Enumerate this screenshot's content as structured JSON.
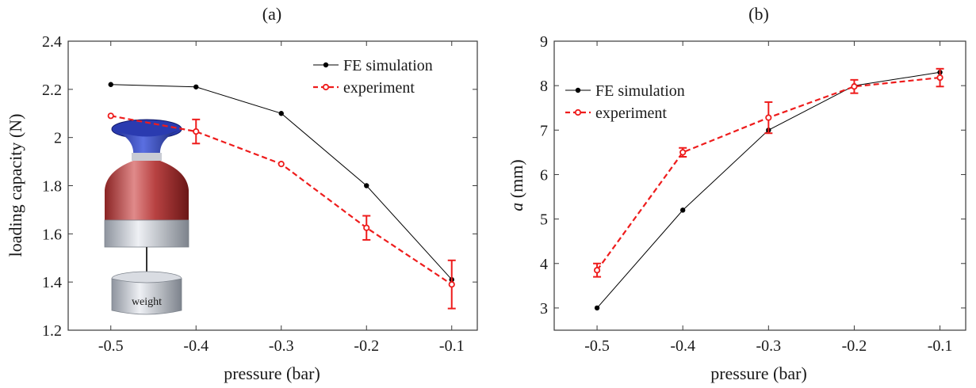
{
  "chart_data": [
    {
      "panel_label": "(a)",
      "type": "line",
      "xlabel": "pressure (bar)",
      "ylabel": "loading capacity (N)",
      "xlim": [
        -0.55,
        -0.07
      ],
      "ylim": [
        1.2,
        2.4
      ],
      "x_ticks": [
        -0.5,
        -0.4,
        -0.3,
        -0.2,
        -0.1
      ],
      "x_tick_labels": [
        "-0.5",
        "-0.4",
        "-0.3",
        "-0.2",
        "-0.1"
      ],
      "y_ticks": [
        1.2,
        1.4,
        1.6,
        1.8,
        2.0,
        2.2,
        2.4
      ],
      "y_tick_labels": [
        "1.2",
        "1.4",
        "1.6",
        "1.8",
        "2",
        "2.2",
        "2.4"
      ],
      "legend_position": "top-right",
      "grid": false,
      "series": [
        {
          "name": "FE simulation",
          "color": "#000000",
          "style": "solid",
          "marker": "filled-circle",
          "x": [
            -0.5,
            -0.4,
            -0.3,
            -0.2,
            -0.1
          ],
          "y": [
            2.22,
            2.21,
            2.1,
            1.8,
            1.41
          ]
        },
        {
          "name": "experiment",
          "color": "#ee1c1c",
          "style": "dashed",
          "marker": "open-circle",
          "x": [
            -0.5,
            -0.4,
            -0.3,
            -0.2,
            -0.1
          ],
          "y": [
            2.09,
            2.025,
            1.89,
            1.625,
            1.39
          ],
          "error": [
            0,
            0.05,
            0,
            0.05,
            0.1
          ]
        }
      ],
      "inset": {
        "label": "weight"
      }
    },
    {
      "panel_label": "(b)",
      "type": "line",
      "xlabel": "pressure (bar)",
      "ylabel_italic": "a",
      "ylabel_rest": " (mm)",
      "xlim": [
        -0.55,
        -0.07
      ],
      "ylim": [
        2.5,
        9
      ],
      "x_ticks": [
        -0.5,
        -0.4,
        -0.3,
        -0.2,
        -0.1
      ],
      "x_tick_labels": [
        "-0.5",
        "-0.4",
        "-0.3",
        "-0.2",
        "-0.1"
      ],
      "y_ticks": [
        3,
        4,
        5,
        6,
        7,
        8,
        9
      ],
      "y_tick_labels": [
        "3",
        "4",
        "5",
        "6",
        "7",
        "8",
        "9"
      ],
      "legend_position": "top-left",
      "grid": false,
      "series": [
        {
          "name": "FE simulation",
          "color": "#000000",
          "style": "solid",
          "marker": "filled-circle",
          "x": [
            -0.5,
            -0.4,
            -0.3,
            -0.2,
            -0.1
          ],
          "y": [
            3.0,
            5.2,
            7.0,
            8.0,
            8.3
          ]
        },
        {
          "name": "experiment",
          "color": "#ee1c1c",
          "style": "dashed",
          "marker": "open-circle",
          "x": [
            -0.5,
            -0.4,
            -0.3,
            -0.2,
            -0.1
          ],
          "y": [
            3.85,
            6.5,
            7.28,
            7.98,
            8.18
          ],
          "error": [
            0.15,
            0.1,
            0.35,
            0.15,
            0.2
          ]
        }
      ]
    }
  ]
}
